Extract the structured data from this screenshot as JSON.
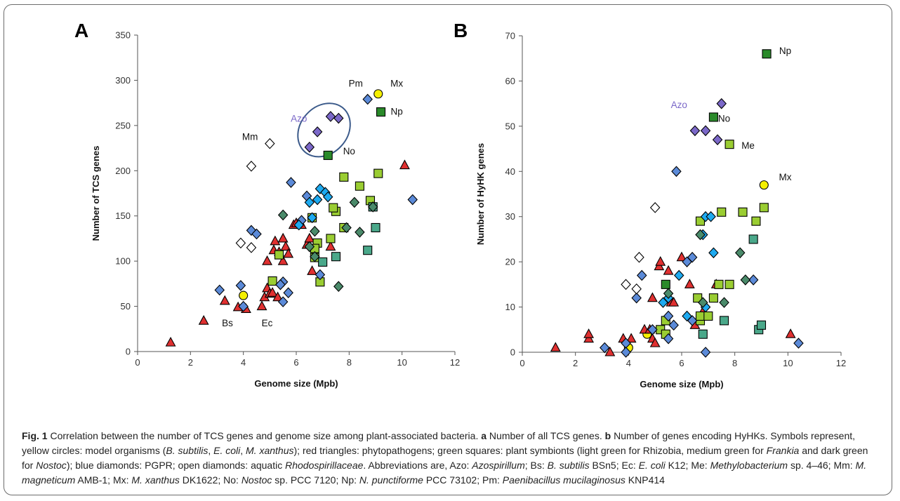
{
  "chart_data": [
    {
      "type": "scatter",
      "panel_letter": "A",
      "xlabel": "Genome size (Mpb)",
      "ylabel": "Number of TCS genes",
      "xlim": [
        0,
        12
      ],
      "ylim": [
        0,
        350
      ],
      "xticks": [
        0,
        2,
        4,
        6,
        8,
        10,
        12
      ],
      "yticks": [
        0,
        50,
        100,
        150,
        200,
        250,
        300,
        350
      ],
      "grid": false,
      "groups": [
        {
          "marker": "circle",
          "color": "#f5f000",
          "points": [
            [
              4.0,
              62
            ],
            [
              9.1,
              285
            ]
          ]
        },
        {
          "marker": "triangle",
          "color": "#e03030",
          "points": [
            [
              1.25,
              10
            ],
            [
              2.5,
              34
            ],
            [
              3.3,
              56
            ],
            [
              3.8,
              49
            ],
            [
              4.1,
              47
            ],
            [
              4.7,
              50
            ],
            [
              4.8,
              60
            ],
            [
              4.9,
              70
            ],
            [
              5.0,
              64
            ],
            [
              5.1,
              65
            ],
            [
              5.15,
              112
            ],
            [
              5.2,
              122
            ],
            [
              5.3,
              60
            ],
            [
              5.35,
              110
            ],
            [
              5.5,
              125
            ],
            [
              5.6,
              116
            ],
            [
              5.7,
              108
            ],
            [
              5.9,
              140
            ],
            [
              6.0,
              142
            ],
            [
              6.2,
              140
            ],
            [
              6.4,
              118
            ],
            [
              6.5,
              125
            ],
            [
              6.6,
              89
            ],
            [
              4.9,
              100
            ],
            [
              5.5,
              100
            ],
            [
              7.3,
              116
            ],
            [
              10.1,
              206
            ]
          ]
        },
        {
          "marker": "square",
          "color": "#9acd32",
          "points": [
            [
              5.1,
              78
            ],
            [
              5.35,
              107
            ],
            [
              6.6,
              148
            ],
            [
              6.7,
              104
            ],
            [
              6.8,
              120
            ],
            [
              6.9,
              77
            ],
            [
              7.3,
              125
            ],
            [
              7.5,
              155
            ],
            [
              7.8,
              137
            ],
            [
              7.8,
              193
            ],
            [
              8.4,
              183
            ],
            [
              8.8,
              167
            ],
            [
              9.1,
              197
            ],
            [
              6.7,
              114
            ],
            [
              7.4,
              159
            ]
          ]
        },
        {
          "marker": "square",
          "color": "#4aa88a",
          "points": [
            [
              7.0,
              99
            ],
            [
              7.5,
              105
            ],
            [
              8.7,
              112
            ],
            [
              8.9,
              160
            ],
            [
              9.0,
              137
            ]
          ]
        },
        {
          "marker": "square",
          "color": "#2a8a2a",
          "points": [
            [
              7.2,
              217
            ],
            [
              9.2,
              265
            ]
          ]
        },
        {
          "marker": "diamond",
          "color": "#5b8ad8",
          "points": [
            [
              3.1,
              68
            ],
            [
              3.9,
              73
            ],
            [
              4.3,
              134
            ],
            [
              4.5,
              130
            ],
            [
              5.5,
              55
            ],
            [
              5.5,
              77
            ],
            [
              5.7,
              65
            ],
            [
              5.8,
              187
            ],
            [
              6.4,
              172
            ],
            [
              6.2,
              145
            ],
            [
              6.9,
              85
            ],
            [
              8.7,
              279
            ],
            [
              10.4,
              168
            ],
            [
              5.4,
              74
            ],
            [
              4.0,
              50
            ]
          ]
        },
        {
          "marker": "diamond",
          "color": "#1eaaf0",
          "points": [
            [
              6.1,
              140
            ],
            [
              6.5,
              165
            ],
            [
              6.8,
              168
            ],
            [
              6.9,
              180
            ],
            [
              7.1,
              176
            ],
            [
              7.2,
              171
            ],
            [
              6.6,
              148
            ]
          ]
        },
        {
          "marker": "diamond",
          "color": "#4a8a6a",
          "points": [
            [
              5.5,
              151
            ],
            [
              6.5,
              116
            ],
            [
              6.7,
              133
            ],
            [
              7.6,
              72
            ],
            [
              8.2,
              165
            ],
            [
              8.4,
              132
            ],
            [
              6.7,
              105
            ],
            [
              8.9,
              160
            ],
            [
              7.9,
              137
            ]
          ]
        },
        {
          "marker": "diamond",
          "color": "#7b68c8",
          "points": [
            [
              6.5,
              226
            ],
            [
              6.8,
              243
            ],
            [
              7.3,
              260
            ],
            [
              7.6,
              258
            ]
          ]
        },
        {
          "marker": "diamond",
          "color": "#ffffff",
          "points": [
            [
              3.9,
              120
            ],
            [
              4.3,
              115
            ],
            [
              4.3,
              205
            ],
            [
              5.0,
              230
            ]
          ]
        }
      ],
      "annotations": [
        {
          "text": "Pm",
          "x": 8.25,
          "y": 293
        },
        {
          "text": "Mx",
          "x": 9.8,
          "y": 293
        },
        {
          "text": "Np",
          "x": 9.8,
          "y": 262
        },
        {
          "text": "Azo",
          "x": 6.1,
          "y": 254
        },
        {
          "text": "Mm",
          "x": 4.25,
          "y": 234
        },
        {
          "text": "No",
          "x": 8.0,
          "y": 218
        },
        {
          "text": "Bs",
          "x": 3.4,
          "y": 28
        },
        {
          "text": "Ec",
          "x": 4.9,
          "y": 28
        }
      ],
      "highlight_ellipse": {
        "cx": 7.05,
        "cy": 245,
        "rx": 1.1,
        "ry": 26
      }
    },
    {
      "type": "scatter",
      "panel_letter": "B",
      "xlabel": "Genome size (Mpb)",
      "ylabel": "Number of HyHK genes",
      "xlim": [
        0,
        12
      ],
      "ylim": [
        0,
        70
      ],
      "xticks": [
        0,
        2,
        4,
        6,
        8,
        10,
        12
      ],
      "yticks": [
        0,
        10,
        20,
        30,
        40,
        50,
        60,
        70
      ],
      "grid": false,
      "groups": [
        {
          "marker": "circle",
          "color": "#f5f000",
          "points": [
            [
              4.0,
              1
            ],
            [
              4.7,
              4
            ],
            [
              9.1,
              37
            ]
          ]
        },
        {
          "marker": "triangle",
          "color": "#e03030",
          "points": [
            [
              1.25,
              1
            ],
            [
              2.5,
              3
            ],
            [
              2.5,
              4
            ],
            [
              3.3,
              0
            ],
            [
              3.8,
              3
            ],
            [
              4.1,
              3
            ],
            [
              4.6,
              5
            ],
            [
              4.8,
              5
            ],
            [
              4.9,
              3
            ],
            [
              5.0,
              2
            ],
            [
              4.9,
              12
            ],
            [
              5.15,
              19
            ],
            [
              5.2,
              20
            ],
            [
              5.5,
              18
            ],
            [
              5.6,
              11
            ],
            [
              5.7,
              11
            ],
            [
              6.0,
              21
            ],
            [
              6.3,
              15
            ],
            [
              6.5,
              6
            ],
            [
              6.8,
              9
            ],
            [
              7.3,
              15
            ],
            [
              10.1,
              4
            ]
          ]
        },
        {
          "marker": "square",
          "color": "#9acd32",
          "points": [
            [
              5.2,
              5
            ],
            [
              5.4,
              4
            ],
            [
              5.4,
              7
            ],
            [
              6.6,
              12
            ],
            [
              6.7,
              7
            ],
            [
              6.7,
              8
            ],
            [
              6.7,
              29
            ],
            [
              7.0,
              8
            ],
            [
              7.2,
              12
            ],
            [
              7.4,
              15
            ],
            [
              7.5,
              31
            ],
            [
              7.8,
              15
            ],
            [
              7.8,
              46
            ],
            [
              8.3,
              31
            ],
            [
              8.8,
              29
            ],
            [
              9.1,
              32
            ]
          ]
        },
        {
          "marker": "square",
          "color": "#4aa88a",
          "points": [
            [
              6.8,
              4
            ],
            [
              7.6,
              7
            ],
            [
              8.7,
              25
            ],
            [
              8.9,
              5
            ],
            [
              9.0,
              6
            ]
          ]
        },
        {
          "marker": "square",
          "color": "#2a8a2a",
          "points": [
            [
              5.4,
              15
            ],
            [
              7.2,
              52
            ],
            [
              9.2,
              66
            ]
          ]
        },
        {
          "marker": "diamond",
          "color": "#5b8ad8",
          "points": [
            [
              3.1,
              1
            ],
            [
              3.9,
              2
            ],
            [
              3.9,
              0
            ],
            [
              4.3,
              12
            ],
            [
              4.5,
              17
            ],
            [
              5.5,
              3
            ],
            [
              5.5,
              8
            ],
            [
              5.7,
              6
            ],
            [
              5.8,
              40
            ],
            [
              6.2,
              20
            ],
            [
              6.4,
              21
            ],
            [
              6.9,
              0
            ],
            [
              6.4,
              7
            ],
            [
              8.7,
              16
            ],
            [
              10.4,
              2
            ],
            [
              4.9,
              5
            ]
          ]
        },
        {
          "marker": "diamond",
          "color": "#1eaaf0",
          "points": [
            [
              5.3,
              11
            ],
            [
              5.5,
              12
            ],
            [
              5.9,
              17
            ],
            [
              6.2,
              8
            ],
            [
              6.8,
              26
            ],
            [
              6.9,
              30
            ],
            [
              7.1,
              30
            ],
            [
              7.2,
              22
            ],
            [
              6.9,
              10
            ]
          ]
        },
        {
          "marker": "diamond",
          "color": "#4a8a6a",
          "points": [
            [
              5.5,
              13
            ],
            [
              6.8,
              11
            ],
            [
              7.6,
              11
            ],
            [
              8.2,
              22
            ],
            [
              8.4,
              16
            ],
            [
              6.7,
              26
            ]
          ]
        },
        {
          "marker": "diamond",
          "color": "#7b68c8",
          "points": [
            [
              6.5,
              49
            ],
            [
              6.9,
              49
            ],
            [
              7.35,
              47
            ],
            [
              7.5,
              55
            ]
          ]
        },
        {
          "marker": "diamond",
          "color": "#ffffff",
          "points": [
            [
              3.9,
              15
            ],
            [
              4.3,
              14
            ],
            [
              4.4,
              21
            ],
            [
              5.0,
              32
            ]
          ]
        }
      ],
      "annotations": [
        {
          "text": "Np",
          "x": 9.9,
          "y": 66
        },
        {
          "text": "Azo",
          "x": 5.9,
          "y": 54
        },
        {
          "text": "No",
          "x": 7.6,
          "y": 51
        },
        {
          "text": "Me",
          "x": 8.5,
          "y": 45
        },
        {
          "text": "Mx",
          "x": 9.9,
          "y": 38
        }
      ]
    }
  ],
  "caption": {
    "segments": [
      {
        "text": "Fig. 1",
        "style": "lead"
      },
      {
        "text": " Correlation between the number of TCS genes and genome size among plant-associated bacteria. ",
        "style": "normal"
      },
      {
        "text": "a",
        "style": "lead"
      },
      {
        "text": " Number of all TCS genes. ",
        "style": "normal"
      },
      {
        "text": "b",
        "style": "lead"
      },
      {
        "text": " Number of genes encoding HyHKs. Symbols represent, yellow circles: model organisms (",
        "style": "normal"
      },
      {
        "text": "B. subtilis",
        "style": "italic"
      },
      {
        "text": ", ",
        "style": "normal"
      },
      {
        "text": "E. coli",
        "style": "italic"
      },
      {
        "text": ", ",
        "style": "normal"
      },
      {
        "text": "M. xanthus",
        "style": "italic"
      },
      {
        "text": "); red triangles: phytopathogens; green squares: plant symbionts (light green for Rhizobia, medium green for ",
        "style": "normal"
      },
      {
        "text": "Frankia",
        "style": "italic"
      },
      {
        "text": " and dark green for ",
        "style": "normal"
      },
      {
        "text": "Nostoc",
        "style": "italic"
      },
      {
        "text": "); blue diamonds: PGPR; open diamonds: aquatic ",
        "style": "normal"
      },
      {
        "text": "Rhodospirillaceae",
        "style": "italic"
      },
      {
        "text": ". Abbreviations are, Azo: ",
        "style": "normal"
      },
      {
        "text": "Azospirillum",
        "style": "italic"
      },
      {
        "text": "; Bs: ",
        "style": "normal"
      },
      {
        "text": "B. subtilis",
        "style": "italic"
      },
      {
        "text": " BSn5; Ec: ",
        "style": "normal"
      },
      {
        "text": "E. coli",
        "style": "italic"
      },
      {
        "text": " K12; Me: ",
        "style": "normal"
      },
      {
        "text": "Methylobacterium",
        "style": "italic"
      },
      {
        "text": " sp. 4–46; Mm: ",
        "style": "normal"
      },
      {
        "text": "M. magneticum",
        "style": "italic"
      },
      {
        "text": " AMB-1; Mx: ",
        "style": "normal"
      },
      {
        "text": "M. xanthus",
        "style": "italic"
      },
      {
        "text": " DK1622; No: ",
        "style": "normal"
      },
      {
        "text": "Nostoc",
        "style": "italic"
      },
      {
        "text": " sp. PCC 7120; Np: ",
        "style": "normal"
      },
      {
        "text": "N. punctiforme",
        "style": "italic"
      },
      {
        "text": " PCC 73102; Pm: ",
        "style": "normal"
      },
      {
        "text": "Paenibacillus mucilaginosus",
        "style": "italic"
      },
      {
        "text": " KNP414",
        "style": "normal"
      }
    ]
  },
  "colors": {
    "purple_label": "#7b68c8",
    "ellipse": "#3b5a8a",
    "axis": "#555555"
  }
}
